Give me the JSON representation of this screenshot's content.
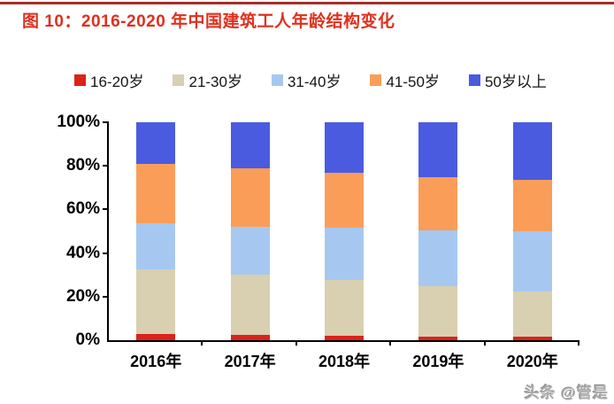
{
  "page": {
    "title": "图 10：2016-2020 年中国建筑工人年龄结构变化",
    "watermark": "头条 @管是"
  },
  "colors": {
    "title_red": "#e0301e",
    "top_rule": "#a5302a",
    "axis": "#000000"
  },
  "chart_data": {
    "type": "bar",
    "stacked": true,
    "title": "2016-2020 年中国建筑工人年龄结构变化",
    "unit": "percent",
    "categories": [
      "2016年",
      "2017年",
      "2018年",
      "2019年",
      "2020年"
    ],
    "series": [
      {
        "name": "16-20岁",
        "color": "#db2318",
        "values": [
          3,
          2.5,
          2,
          1.5,
          1.5
        ]
      },
      {
        "name": "21-30岁",
        "color": "#d9cfb1",
        "values": [
          29.5,
          27.5,
          25.5,
          23.5,
          21
        ]
      },
      {
        "name": "31-40岁",
        "color": "#a6c8f0",
        "values": [
          21,
          22,
          24,
          25.5,
          27.5
        ]
      },
      {
        "name": "41-50岁",
        "color": "#fa9d59",
        "values": [
          27.5,
          27,
          25.5,
          24.5,
          23.5
        ]
      },
      {
        "name": "50岁以上",
        "color": "#4a5be0",
        "values": [
          19,
          21,
          23,
          25,
          26.5
        ]
      }
    ],
    "xlabel": "",
    "ylabel": "",
    "yticks": [
      "0%",
      "20%",
      "40%",
      "60%",
      "80%",
      "100%"
    ],
    "ylim": [
      0,
      100
    ],
    "legend_position": "top",
    "grid": false
  }
}
